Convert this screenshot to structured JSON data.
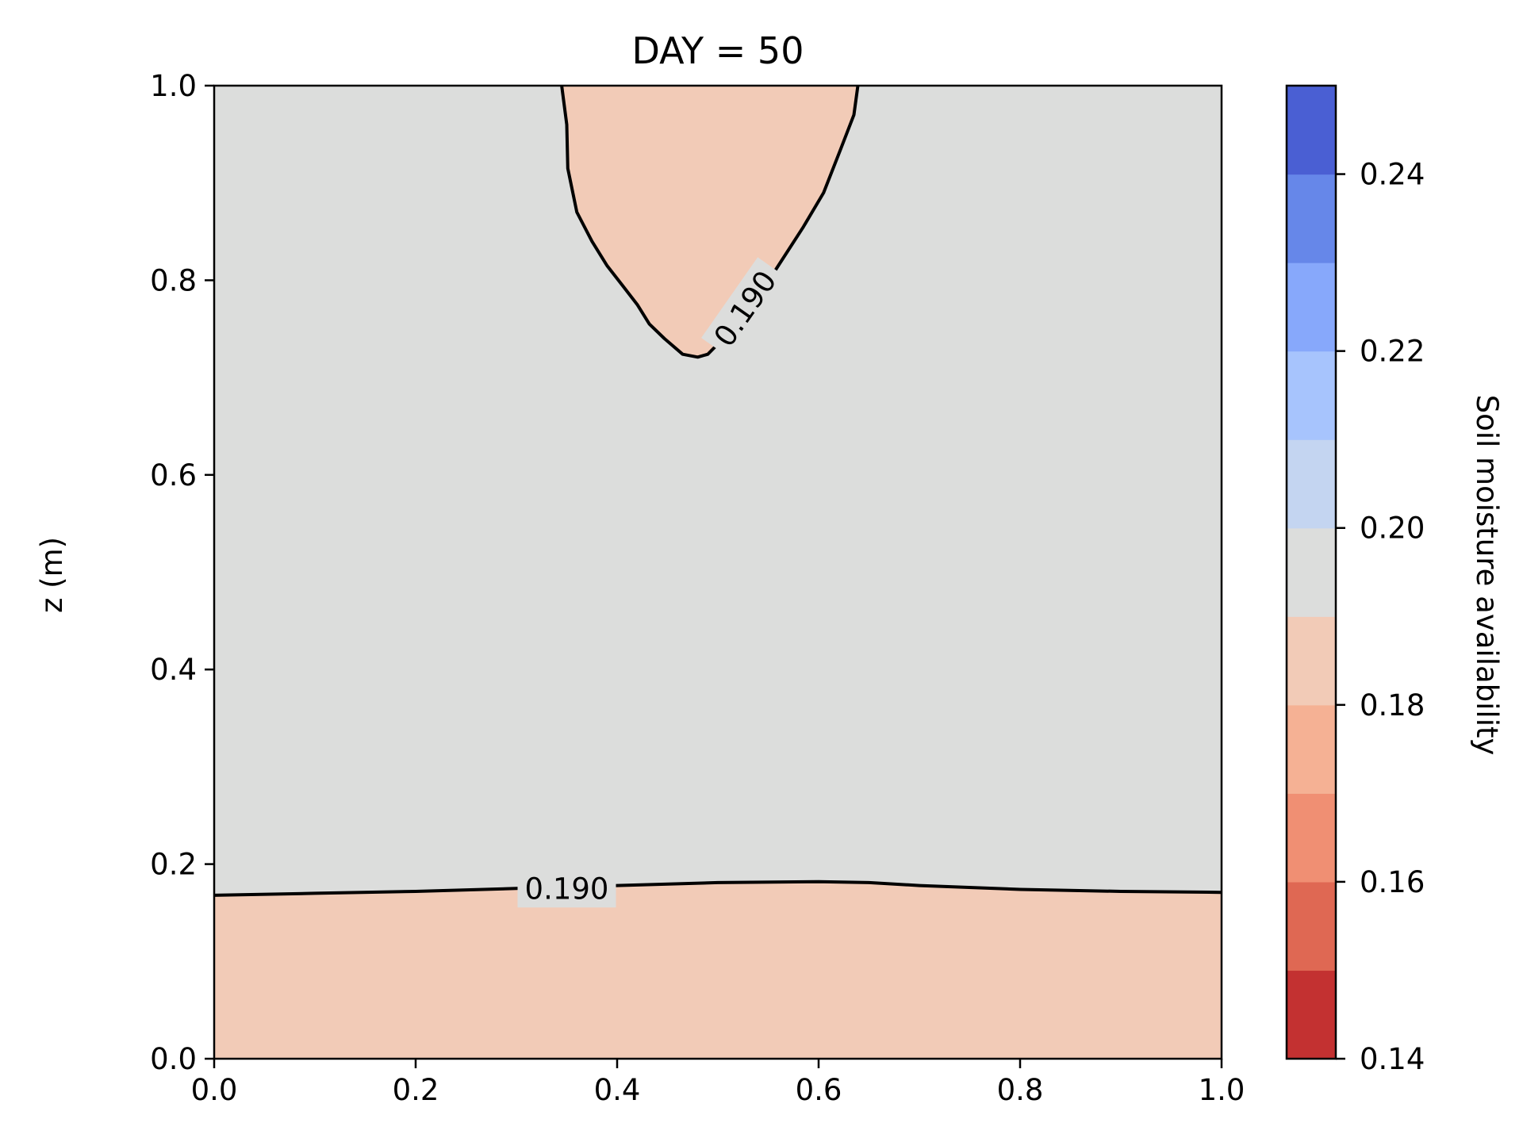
{
  "chart_data": {
    "type": "heatmap",
    "subtype": "filled-contour",
    "title": "DAY = 50",
    "xlabel": "",
    "ylabel": "z (m)",
    "xlim": [
      0.0,
      1.0
    ],
    "ylim": [
      0.0,
      1.0
    ],
    "xticks": [
      "0.0",
      "0.2",
      "0.4",
      "0.6",
      "0.8",
      "1.0"
    ],
    "yticks": [
      "0.0",
      "0.2",
      "0.4",
      "0.6",
      "0.8",
      "1.0"
    ],
    "grid": false,
    "background_level_color": "#dcdddc",
    "regions": [
      {
        "name": "lower-dry-band",
        "level_range": [
          0.18,
          0.19
        ],
        "color": "#f2cbb7",
        "boundary": [
          [
            0.0,
            0.168
          ],
          [
            0.1,
            0.17
          ],
          [
            0.2,
            0.172
          ],
          [
            0.3,
            0.175
          ],
          [
            0.4,
            0.178
          ],
          [
            0.5,
            0.181
          ],
          [
            0.6,
            0.182
          ],
          [
            0.65,
            0.181
          ],
          [
            0.7,
            0.178
          ],
          [
            0.8,
            0.174
          ],
          [
            0.9,
            0.172
          ],
          [
            1.0,
            0.171
          ]
        ]
      },
      {
        "name": "upper-dry-lobe",
        "level_range": [
          0.18,
          0.19
        ],
        "color": "#f2cbb7",
        "boundary": [
          [
            0.345,
            1.0
          ],
          [
            0.35,
            0.96
          ],
          [
            0.351,
            0.915
          ],
          [
            0.36,
            0.87
          ],
          [
            0.375,
            0.84
          ],
          [
            0.39,
            0.815
          ],
          [
            0.405,
            0.795
          ],
          [
            0.42,
            0.775
          ],
          [
            0.432,
            0.755
          ],
          [
            0.447,
            0.74
          ],
          [
            0.465,
            0.724
          ],
          [
            0.48,
            0.721
          ],
          [
            0.49,
            0.724
          ],
          [
            0.51,
            0.745
          ],
          [
            0.535,
            0.775
          ],
          [
            0.56,
            0.815
          ],
          [
            0.585,
            0.855
          ],
          [
            0.605,
            0.89
          ],
          [
            0.622,
            0.935
          ],
          [
            0.635,
            0.97
          ],
          [
            0.639,
            1.0
          ]
        ]
      }
    ],
    "contour_lines": [
      {
        "level": 0.19,
        "label": "0.190",
        "label_at": [
          0.35,
          0.175
        ],
        "label_angle": 0,
        "points": [
          [
            0.0,
            0.168
          ],
          [
            0.1,
            0.17
          ],
          [
            0.2,
            0.172
          ],
          [
            0.3,
            0.175
          ],
          [
            0.4,
            0.178
          ],
          [
            0.5,
            0.181
          ],
          [
            0.6,
            0.182
          ],
          [
            0.65,
            0.181
          ],
          [
            0.7,
            0.178
          ],
          [
            0.8,
            0.174
          ],
          [
            0.9,
            0.172
          ],
          [
            1.0,
            0.171
          ]
        ]
      },
      {
        "level": 0.19,
        "label": "0.190",
        "label_at": [
          0.527,
          0.771
        ],
        "label_angle": -55,
        "points": [
          [
            0.345,
            1.0
          ],
          [
            0.35,
            0.96
          ],
          [
            0.351,
            0.915
          ],
          [
            0.36,
            0.87
          ],
          [
            0.375,
            0.84
          ],
          [
            0.39,
            0.815
          ],
          [
            0.405,
            0.795
          ],
          [
            0.42,
            0.775
          ],
          [
            0.432,
            0.755
          ],
          [
            0.447,
            0.74
          ],
          [
            0.465,
            0.724
          ],
          [
            0.48,
            0.721
          ],
          [
            0.49,
            0.724
          ],
          [
            0.51,
            0.745
          ],
          [
            0.535,
            0.775
          ],
          [
            0.56,
            0.815
          ],
          [
            0.585,
            0.855
          ],
          [
            0.605,
            0.89
          ],
          [
            0.622,
            0.935
          ],
          [
            0.635,
            0.97
          ],
          [
            0.639,
            1.0
          ]
        ]
      }
    ],
    "colorbar": {
      "label": "Soil moisture availability",
      "range": [
        0.14,
        0.25
      ],
      "ticks": [
        "0.14",
        "0.16",
        "0.18",
        "0.20",
        "0.22",
        "0.24"
      ],
      "levels": [
        {
          "from": 0.14,
          "to": 0.15,
          "color": "#c33131"
        },
        {
          "from": 0.15,
          "to": 0.16,
          "color": "#df6853"
        },
        {
          "from": 0.16,
          "to": 0.17,
          "color": "#f08f73"
        },
        {
          "from": 0.17,
          "to": 0.18,
          "color": "#f5b194"
        },
        {
          "from": 0.18,
          "to": 0.19,
          "color": "#f2cbb7"
        },
        {
          "from": 0.19,
          "to": 0.2,
          "color": "#dcdddc"
        },
        {
          "from": 0.2,
          "to": 0.21,
          "color": "#c4d5f1"
        },
        {
          "from": 0.21,
          "to": 0.22,
          "color": "#a7c4fd"
        },
        {
          "from": 0.22,
          "to": 0.23,
          "color": "#87a8fb"
        },
        {
          "from": 0.23,
          "to": 0.24,
          "color": "#6687e9"
        },
        {
          "from": 0.24,
          "to": 0.25,
          "color": "#4a5fd3"
        }
      ]
    }
  }
}
